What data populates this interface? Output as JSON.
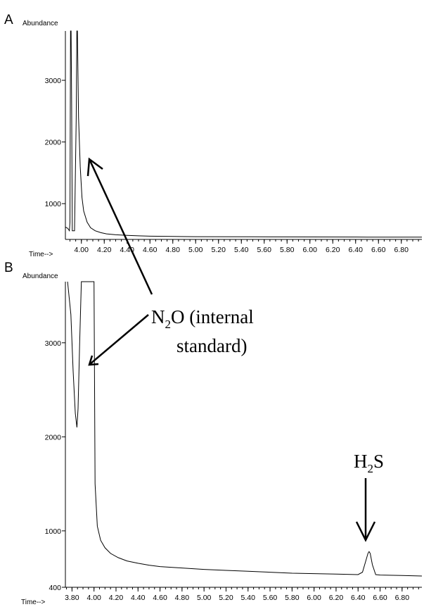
{
  "chart_data": [
    {
      "panel": "A",
      "type": "line",
      "ylabel": "Abundance",
      "xlabel": "Time-->",
      "xlim": [
        3.86,
        6.98
      ],
      "ylim": [
        420,
        3800
      ],
      "xticks": [
        "4.00",
        "4.20",
        "4.40",
        "4.60",
        "4.80",
        "5.00",
        "5.20",
        "5.40",
        "5.60",
        "5.80",
        "6.00",
        "6.20",
        "6.40",
        "6.60",
        "6.80"
      ],
      "yticks": [
        "1000",
        "2000",
        "3000"
      ],
      "series": [
        {
          "x": [
            3.86,
            3.88,
            3.895,
            3.9,
            3.905,
            3.91,
            3.915,
            3.92,
            3.94,
            3.955,
            3.96,
            3.965,
            3.975,
            3.99,
            4.005,
            4.02,
            4.05,
            4.08,
            4.12,
            4.17,
            4.22,
            4.3,
            4.4,
            4.5,
            4.6,
            4.8,
            5.0,
            5.5,
            6.0,
            6.5,
            6.98
          ],
          "y": [
            620,
            600,
            560,
            700,
            3800,
            3800,
            2600,
            560,
            560,
            2400,
            3800,
            3800,
            2400,
            1600,
            1100,
            880,
            700,
            610,
            560,
            530,
            510,
            495,
            485,
            478,
            472,
            468,
            465,
            462,
            460,
            458,
            456
          ]
        }
      ],
      "annotations": []
    },
    {
      "panel": "B",
      "type": "line",
      "ylabel": "Abundance",
      "xlabel": "Time-->",
      "xlim": [
        3.74,
        6.98
      ],
      "ylim": [
        400,
        3650
      ],
      "xticks": [
        "3.80",
        "4.00",
        "4.20",
        "4.40",
        "4.60",
        "4.80",
        "5.00",
        "5.20",
        "5.40",
        "5.60",
        "5.80",
        "6.00",
        "6.20",
        "6.40",
        "6.60",
        "6.80"
      ],
      "yticks": [
        "400",
        "1000",
        "2000",
        "3000"
      ],
      "series": [
        {
          "x": [
            3.76,
            3.79,
            3.81,
            3.83,
            3.845,
            3.855,
            3.87,
            3.885,
            3.9,
            3.92,
            3.935,
            3.95,
            3.955,
            4.0,
            4.01,
            4.03,
            4.06,
            4.1,
            4.15,
            4.22,
            4.3,
            4.4,
            4.5,
            4.6,
            4.8,
            5.0,
            5.2,
            5.4,
            5.6,
            5.8,
            6.0,
            6.2,
            6.4,
            6.44,
            6.47,
            6.49,
            6.5,
            6.51,
            6.53,
            6.56,
            6.6,
            6.8,
            6.98
          ],
          "y": [
            3650,
            3300,
            2700,
            2250,
            2100,
            2300,
            3000,
            3650,
            3650,
            3650,
            3650,
            3650,
            3650,
            3650,
            1500,
            1050,
            900,
            820,
            760,
            715,
            680,
            655,
            635,
            620,
            605,
            590,
            580,
            570,
            560,
            550,
            545,
            540,
            535,
            560,
            680,
            760,
            780,
            760,
            640,
            535,
            530,
            525,
            520
          ]
        }
      ],
      "annotations": [
        {
          "text": "N",
          "sub": "2",
          "rest": "O (internal"
        },
        {
          "text": "standard)"
        },
        {
          "text": "H",
          "sub": "2",
          "rest": "S"
        }
      ]
    }
  ],
  "panelA": {
    "letter": "A",
    "ylabel": "Abundance",
    "xlabel": "Time-->"
  },
  "panelB": {
    "letter": "B",
    "ylabel": "Abundance",
    "xlabel": "Time-->"
  },
  "annotation": {
    "n2o_main": "N",
    "n2o_sub": "2",
    "n2o_rest": "O (internal",
    "n2o_line2": "standard)",
    "h2s_main": "H",
    "h2s_sub": "2",
    "h2s_rest": "S"
  }
}
